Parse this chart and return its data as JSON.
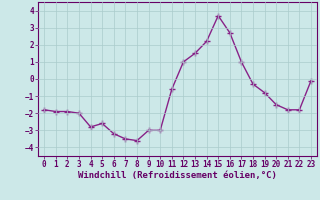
{
  "x": [
    0,
    1,
    2,
    3,
    4,
    5,
    6,
    7,
    8,
    9,
    10,
    11,
    12,
    13,
    14,
    15,
    16,
    17,
    18,
    19,
    20,
    21,
    22,
    23
  ],
  "y": [
    -1.8,
    -1.9,
    -1.9,
    -2.0,
    -2.8,
    -2.6,
    -3.2,
    -3.5,
    -3.6,
    -3.0,
    -3.0,
    -0.6,
    1.0,
    1.5,
    2.2,
    3.7,
    2.7,
    1.0,
    -0.3,
    -0.8,
    -1.5,
    -1.8,
    -1.8,
    -0.1
  ],
  "line_color": "#882288",
  "marker": "+",
  "markersize": 4,
  "linewidth": 1.0,
  "xlabel": "Windchill (Refroidissement éolien,°C)",
  "xlim": [
    -0.5,
    23.5
  ],
  "ylim": [
    -4.5,
    4.5
  ],
  "yticks": [
    -4,
    -3,
    -2,
    -1,
    0,
    1,
    2,
    3,
    4
  ],
  "xticks": [
    0,
    1,
    2,
    3,
    4,
    5,
    6,
    7,
    8,
    9,
    10,
    11,
    12,
    13,
    14,
    15,
    16,
    17,
    18,
    19,
    20,
    21,
    22,
    23
  ],
  "bg_color": "#cce8e8",
  "grid_color": "#aacccc",
  "axis_color": "#660066",
  "tick_fontsize": 5.5,
  "xlabel_fontsize": 6.5
}
